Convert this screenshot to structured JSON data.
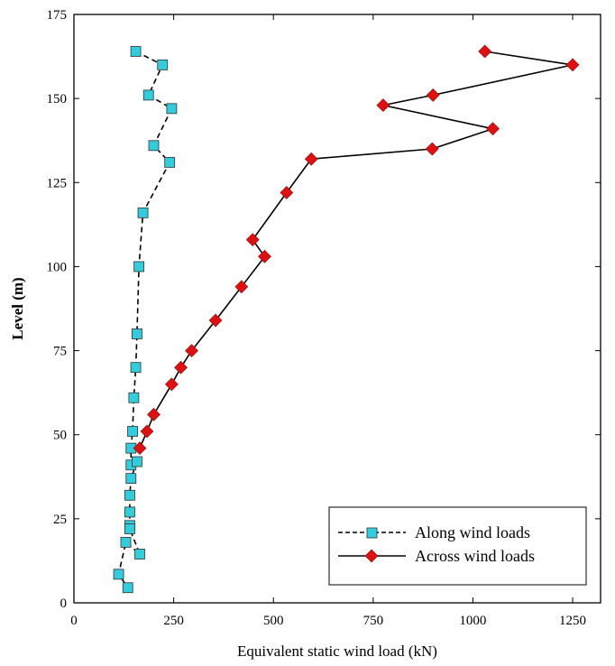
{
  "chart_data": {
    "type": "line",
    "xlabel": "Equivalent static wind load (kN)",
    "ylabel": "Level (m)",
    "xlim": [
      0,
      1320
    ],
    "ylim": [
      0,
      175
    ],
    "xticks": [
      0,
      250,
      500,
      750,
      1000,
      1250
    ],
    "yticks": [
      0,
      25,
      50,
      75,
      100,
      125,
      150,
      175
    ],
    "grid": false,
    "legend_position": "bottom-right",
    "series": [
      {
        "name": "Along wind loads",
        "color": "#33ccdd",
        "marker": "square",
        "line_style": "dashed",
        "x": [
          155,
          222,
          187,
          245,
          200,
          240,
          173,
          163,
          158,
          155,
          150,
          147,
          143,
          143,
          158,
          143,
          140,
          140,
          140,
          140,
          165,
          130,
          112,
          135
        ],
        "y": [
          164,
          160,
          151,
          147,
          136,
          131,
          116,
          100,
          80,
          70,
          61,
          51,
          46,
          41,
          42,
          37,
          32,
          27,
          23,
          22,
          14.5,
          18,
          8.5,
          4.5
        ]
      },
      {
        "name": "Across wind loads",
        "color": "#dd1111",
        "marker": "diamond",
        "line_style": "solid",
        "x": [
          1030,
          1250,
          900,
          775,
          1050,
          898,
          595,
          533,
          448,
          478,
          420,
          355,
          295,
          268,
          245,
          200,
          183,
          165
        ],
        "y": [
          164,
          160,
          151,
          148,
          141,
          135,
          132,
          122,
          108,
          103,
          94,
          84,
          75,
          70,
          65,
          56,
          51,
          46
        ]
      }
    ]
  }
}
